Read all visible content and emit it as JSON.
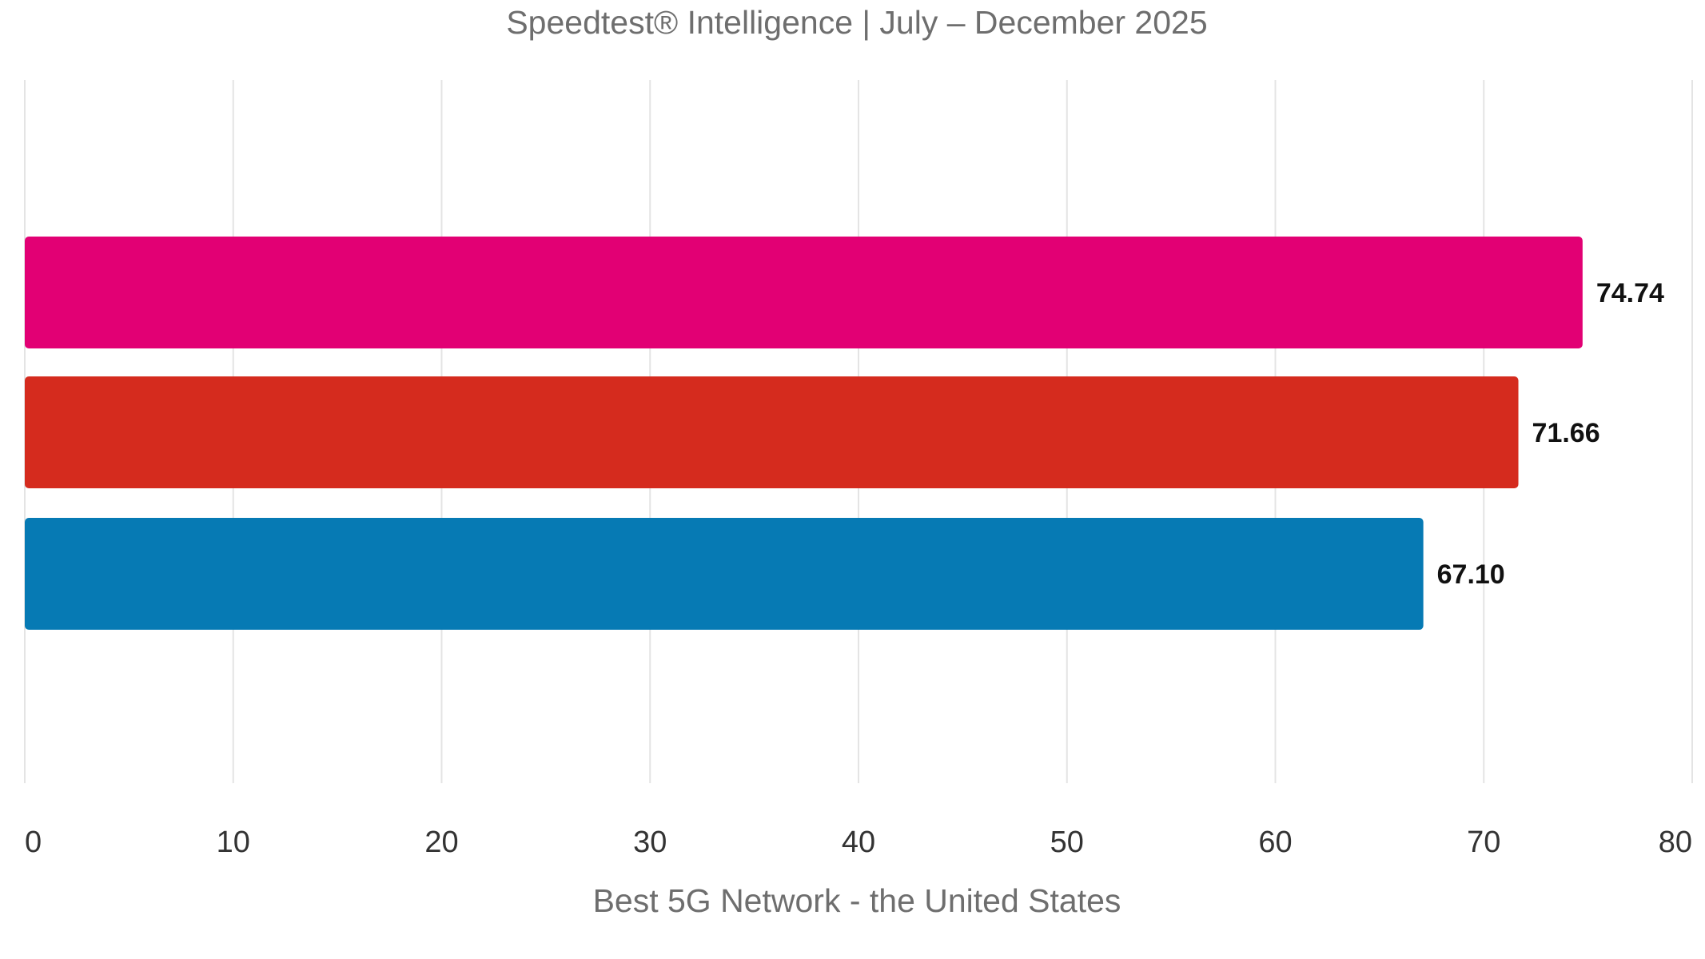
{
  "chart_data": {
    "type": "bar",
    "orientation": "horizontal",
    "title": "Speedtest® Intelligence | July – December 2025",
    "xlabel": "Best 5G Network - the United States",
    "ylabel": "",
    "xlim": [
      0,
      80
    ],
    "xticks": [
      0,
      10,
      20,
      30,
      40,
      50,
      60,
      70,
      80
    ],
    "grid": true,
    "legend": "none",
    "bars": [
      {
        "value": 74.74,
        "label": "74.74",
        "color": "#e20074"
      },
      {
        "value": 71.66,
        "label": "71.66",
        "color": "#d52b1e"
      },
      {
        "value": 67.1,
        "label": "67.10",
        "color": "#067ab4"
      }
    ]
  }
}
